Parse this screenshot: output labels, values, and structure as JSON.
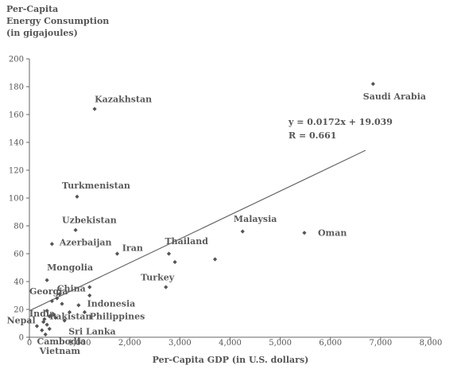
{
  "chart_data": {
    "type": "scatter",
    "title_lines": [
      "Per-Capita",
      "Energy Consumption",
      "(in gigajoules)"
    ],
    "xlabel": "Per-Capita GDP (in U.S. dollars)",
    "xlim": [
      0,
      8000
    ],
    "ylim": [
      0,
      200
    ],
    "x_ticks": [
      0,
      1000,
      2000,
      3000,
      4000,
      5000,
      6000,
      7000,
      8000
    ],
    "x_tick_labels": [
      "0",
      "1,000",
      "2,000",
      "3,000",
      "4,000",
      "5,000",
      "6,000",
      "7,000",
      "8,000"
    ],
    "y_ticks": [
      0,
      20,
      40,
      60,
      80,
      100,
      120,
      140,
      160,
      180,
      200
    ],
    "y_tick_labels": [
      "0",
      "20",
      "40",
      "60",
      "80",
      "100",
      "120",
      "140",
      "160",
      "180",
      "200"
    ],
    "grid": false,
    "marker_color": "#555555",
    "points": [
      {
        "x": 1300,
        "y": 164
      },
      {
        "x": 6850,
        "y": 182
      },
      {
        "x": 950,
        "y": 101
      },
      {
        "x": 920,
        "y": 77
      },
      {
        "x": 450,
        "y": 67
      },
      {
        "x": 1750,
        "y": 60
      },
      {
        "x": 2780,
        "y": 60
      },
      {
        "x": 2900,
        "y": 54
      },
      {
        "x": 3700,
        "y": 56
      },
      {
        "x": 4250,
        "y": 76
      },
      {
        "x": 5480,
        "y": 75
      },
      {
        "x": 350,
        "y": 41
      },
      {
        "x": 2720,
        "y": 36
      },
      {
        "x": 1200,
        "y": 36
      },
      {
        "x": 1200,
        "y": 30
      },
      {
        "x": 980,
        "y": 23
      },
      {
        "x": 1100,
        "y": 18
      },
      {
        "x": 600,
        "y": 31
      },
      {
        "x": 550,
        "y": 28
      },
      {
        "x": 450,
        "y": 26
      },
      {
        "x": 650,
        "y": 24
      },
      {
        "x": 800,
        "y": 18
      },
      {
        "x": 350,
        "y": 19
      },
      {
        "x": 400,
        "y": 15
      },
      {
        "x": 520,
        "y": 14
      },
      {
        "x": 300,
        "y": 13
      },
      {
        "x": 280,
        "y": 11
      },
      {
        "x": 350,
        "y": 9
      },
      {
        "x": 150,
        "y": 8
      },
      {
        "x": 250,
        "y": 5
      },
      {
        "x": 400,
        "y": 6
      },
      {
        "x": 320,
        "y": 2
      },
      {
        "x": 700,
        "y": 12
      }
    ],
    "labels": [
      {
        "text": "Kazakhstan",
        "x": 1300,
        "y": 169
      },
      {
        "text": "Saudi Arabia",
        "x": 6650,
        "y": 171
      },
      {
        "text": "Turkmenistan",
        "x": 650,
        "y": 107
      },
      {
        "text": "Uzbekistan",
        "x": 650,
        "y": 82
      },
      {
        "text": "Azerbaijan",
        "x": 600,
        "y": 66
      },
      {
        "text": "Iran",
        "x": 1850,
        "y": 62
      },
      {
        "text": "Thailand",
        "x": 2700,
        "y": 67
      },
      {
        "text": "Malaysia",
        "x": 4070,
        "y": 83
      },
      {
        "text": "Oman",
        "x": 5750,
        "y": 73
      },
      {
        "text": "Mongolia",
        "x": 350,
        "y": 48
      },
      {
        "text": "Turkey",
        "x": 2220,
        "y": 41
      },
      {
        "text": "China",
        "x": 550,
        "y": 33
      },
      {
        "text": "Georgia",
        "x": 0,
        "y": 31
      },
      {
        "text": "Indonesia",
        "x": 1150,
        "y": 22
      },
      {
        "text": "India",
        "x": 0,
        "y": 15
      },
      {
        "text": "Pakistan",
        "x": 400,
        "y": 13
      },
      {
        "text": "Philippines",
        "x": 1200,
        "y": 13
      },
      {
        "text": "Nepal",
        "x": -450,
        "y": 10
      },
      {
        "text": "Sri Lanka",
        "x": 780,
        "y": 2
      },
      {
        "text": "Cambodia",
        "x": 150,
        "y": -5
      },
      {
        "text": "Vietnam",
        "x": 200,
        "y": -12
      }
    ],
    "trendline": {
      "slope": 0.0172,
      "intercept": 19.039,
      "x_range": [
        0,
        6700
      ],
      "equation_text": "y = 0.0172x + 19.039",
      "r_text": "R = 0.661"
    }
  }
}
